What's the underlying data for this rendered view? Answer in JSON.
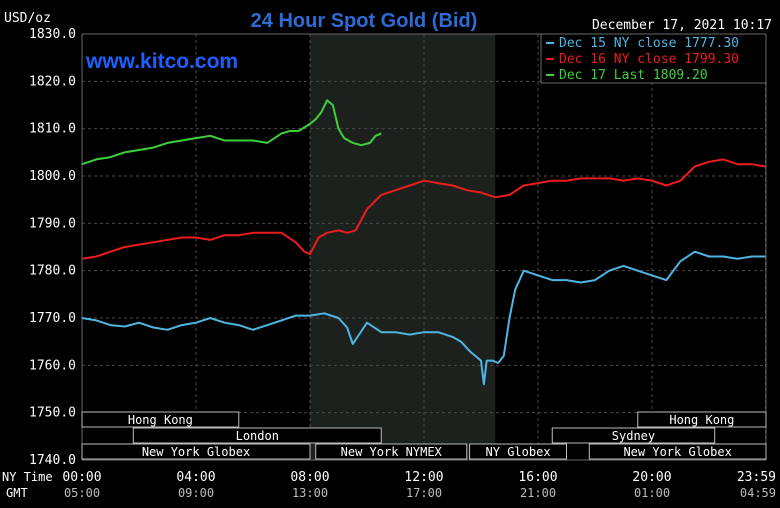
{
  "chart_data": {
    "type": "line",
    "title": "24 Hour Spot Gold (Bid)",
    "ylabel": "USD/oz",
    "ylim": [
      1740,
      1830
    ],
    "y_ticks": [
      "1830.0",
      "1820.0",
      "1810.0",
      "1800.0",
      "1790.0",
      "1780.0",
      "1770.0",
      "1760.0",
      "1750.0",
      "1740.0"
    ],
    "y_tick_values": [
      1830,
      1820,
      1810,
      1800,
      1790,
      1780,
      1770,
      1760,
      1750,
      1740
    ],
    "x_ticks_ny": [
      "00:00",
      "04:00",
      "08:00",
      "12:00",
      "16:00",
      "20:00",
      "23:59"
    ],
    "x_ticks_gmt": [
      "05:00",
      "09:00",
      "13:00",
      "17:00",
      "21:00",
      "01:00",
      "04:59"
    ],
    "x_tick_hours": [
      0,
      4,
      8,
      12,
      16,
      20,
      23.983
    ],
    "xlim_hours": [
      0,
      24
    ],
    "row_label_ny": "NY Time",
    "row_label_gmt": "GMT",
    "watermark": "www.kitco.com",
    "datetime": "December 17, 2021 10:17",
    "legend_position": "top-right",
    "grid": true,
    "shaded_session_hours": [
      8,
      14.5
    ],
    "sessions": [
      {
        "label": "Hong Kong",
        "start": 0,
        "end": 5.5,
        "row": 0
      },
      {
        "label": "Hong Kong",
        "start": 19.5,
        "end": 24,
        "row": 0
      },
      {
        "label": "London",
        "start": 1.8,
        "end": 10.5,
        "row": 1
      },
      {
        "label": "Sydney",
        "start": 16.5,
        "end": 22.2,
        "row": 1
      },
      {
        "label": "New York Globex",
        "start": 0,
        "end": 8,
        "row": 2
      },
      {
        "label": "New York NYMEX",
        "start": 8.2,
        "end": 13.5,
        "row": 2
      },
      {
        "label": "NY Globex",
        "start": 13.6,
        "end": 17,
        "row": 2
      },
      {
        "label": "New York Globex",
        "start": 17.8,
        "end": 24,
        "row": 2
      }
    ],
    "series": [
      {
        "name": "Dec 15 NY close 1777.30",
        "color": "#4fb6e3",
        "x": [
          0,
          0.5,
          1,
          1.5,
          2,
          2.5,
          3,
          3.5,
          4,
          4.5,
          5,
          5.5,
          6,
          6.5,
          7,
          7.5,
          8,
          8.5,
          9,
          9.3,
          9.5,
          10,
          10.5,
          11,
          11.5,
          12,
          12.5,
          13,
          13.3,
          13.6,
          13.8,
          14,
          14.1,
          14.2,
          14.4,
          14.6,
          14.8,
          15,
          15.2,
          15.5,
          16,
          16.5,
          17,
          17.5,
          18,
          18.5,
          19,
          19.5,
          20,
          20.5,
          21,
          21.5,
          22,
          22.5,
          23,
          23.5,
          23.98
        ],
        "y": [
          1770,
          1769.5,
          1768.5,
          1768.2,
          1769,
          1768,
          1767.5,
          1768.5,
          1769,
          1770,
          1769,
          1768.5,
          1767.5,
          1768.5,
          1769.5,
          1770.5,
          1770.5,
          1771,
          1770,
          1768,
          1764.5,
          1769,
          1767,
          1767,
          1766.5,
          1767,
          1767,
          1766,
          1765,
          1763,
          1762,
          1761,
          1756,
          1761,
          1761,
          1760.5,
          1762,
          1770,
          1776,
          1780,
          1779,
          1778,
          1778,
          1777.5,
          1778,
          1780,
          1781,
          1780,
          1779,
          1778,
          1782,
          1784,
          1783,
          1783,
          1782.5,
          1783,
          1783
        ]
      },
      {
        "name": "Dec 16 NY close 1799.30",
        "color": "#ee1c1c",
        "x": [
          0,
          0.5,
          1,
          1.5,
          2,
          2.5,
          3,
          3.5,
          4,
          4.5,
          5,
          5.5,
          6,
          6.5,
          7,
          7.5,
          7.8,
          8,
          8.3,
          8.6,
          9,
          9.3,
          9.6,
          10,
          10.5,
          11,
          11.5,
          12,
          12.5,
          13,
          13.5,
          14,
          14.5,
          15,
          15.5,
          16,
          16.5,
          17,
          17.5,
          18,
          18.5,
          19,
          19.5,
          20,
          20.5,
          21,
          21.5,
          22,
          22.5,
          23,
          23.5,
          23.98
        ],
        "y": [
          1782.5,
          1783,
          1784,
          1785,
          1785.5,
          1786,
          1786.5,
          1787,
          1787,
          1786.5,
          1787.5,
          1787.5,
          1788,
          1788,
          1788,
          1786,
          1784,
          1783.5,
          1787,
          1788,
          1788.5,
          1788,
          1788.5,
          1793,
          1796,
          1797,
          1798,
          1799,
          1798.5,
          1798,
          1797,
          1796.5,
          1795.5,
          1796,
          1798,
          1798.5,
          1799,
          1799,
          1799.5,
          1799.5,
          1799.5,
          1799,
          1799.5,
          1799,
          1798,
          1799,
          1802,
          1803,
          1803.5,
          1802.5,
          1802.5,
          1802
        ]
      },
      {
        "name": "Dec 17 Last 1809.20",
        "color": "#3cd13c",
        "x": [
          0,
          0.5,
          1,
          1.5,
          2,
          2.5,
          3,
          3.5,
          4,
          4.5,
          5,
          5.5,
          6,
          6.5,
          7,
          7.3,
          7.6,
          8,
          8.2,
          8.4,
          8.6,
          8.8,
          9,
          9.2,
          9.5,
          9.8,
          10.1,
          10.3,
          10.5
        ],
        "y": [
          1802.5,
          1803.5,
          1804,
          1805,
          1805.5,
          1806,
          1807,
          1807.5,
          1808,
          1808.5,
          1807.5,
          1807.5,
          1807.5,
          1807,
          1809,
          1809.5,
          1809.5,
          1811,
          1812,
          1813.5,
          1816,
          1815,
          1810,
          1808,
          1807,
          1806.5,
          1807,
          1808.5,
          1809
        ]
      }
    ]
  }
}
